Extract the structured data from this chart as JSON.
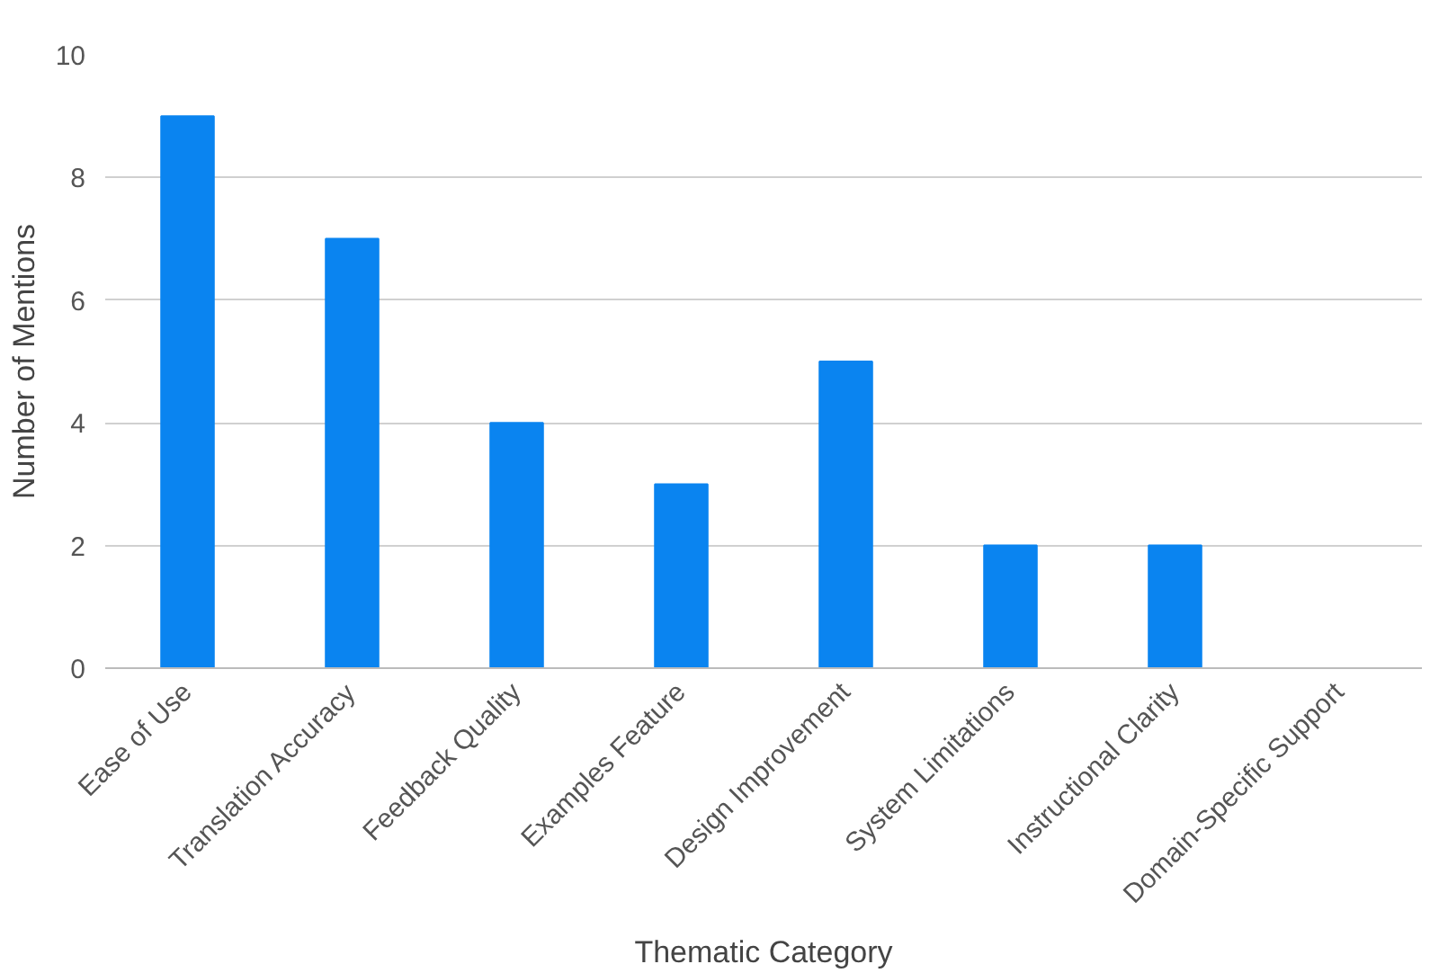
{
  "chart_data": {
    "type": "bar",
    "xlabel": "Thematic Category",
    "ylabel": "Number of Mentions",
    "categories": [
      "Ease of Use",
      "Translation Accuracy",
      "Feedback Quality",
      "Examples Feature",
      "Design Improvement",
      "System Limitations",
      "Instructional Clarity",
      "Domain-Specific Support"
    ],
    "values": [
      9,
      7,
      4,
      3,
      5,
      2,
      2,
      0
    ],
    "color": "#0a84f0",
    "ylim": [
      0,
      10
    ],
    "yticks": [
      0,
      2,
      4,
      6,
      8,
      10
    ],
    "grid": "y"
  }
}
